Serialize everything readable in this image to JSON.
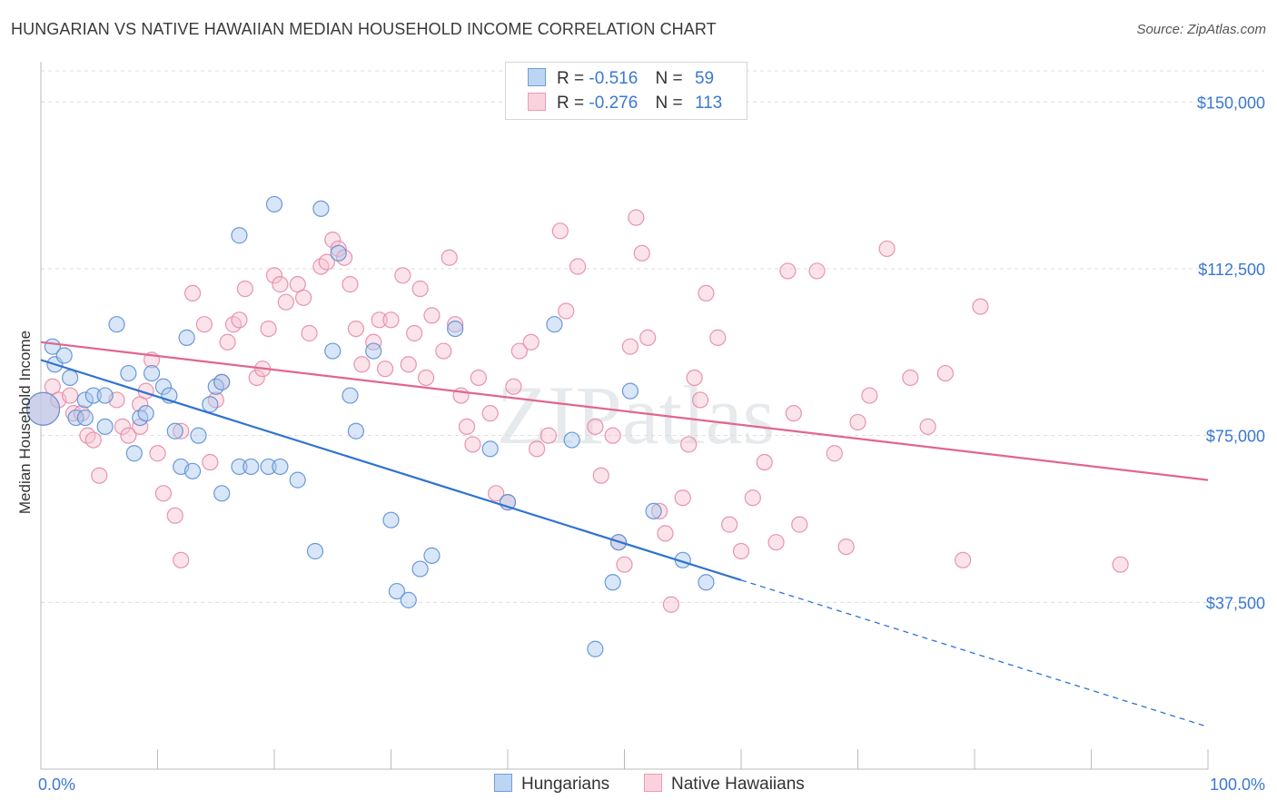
{
  "title": "HUNGARIAN VS NATIVE HAWAIIAN MEDIAN HOUSEHOLD INCOME CORRELATION CHART",
  "source": "Source: ZipAtlas.com",
  "watermark": "ZIPatlas",
  "legend": {
    "rows": [
      {
        "r_label": "R =",
        "r_value": "-0.516",
        "n_label": "N =",
        "n_value": "59"
      },
      {
        "r_label": "R =",
        "r_value": "-0.276",
        "n_label": "N =",
        "n_value": "113"
      }
    ]
  },
  "bottom_legend": {
    "hungarians": "Hungarians",
    "hawaiians": "Native Hawaiians"
  },
  "colors": {
    "blue_fill": "#aac8ee",
    "blue_stroke": "#5b8fd6",
    "blue_line": "#2f73d0",
    "pink_fill": "#f7c0d0",
    "pink_stroke": "#e58aa8",
    "pink_line": "#e0668e",
    "tick_text": "#3a78d4",
    "grid": "#dddddd"
  },
  "chart_data": {
    "type": "scatter",
    "title": "HUNGARIAN VS NATIVE HAWAIIAN MEDIAN HOUSEHOLD INCOME CORRELATION CHART",
    "xlabel": "",
    "ylabel": "Median Household Income",
    "xlim": [
      0,
      100
    ],
    "ylim": [
      0,
      157000
    ],
    "x_tick_labels": [
      "0.0%",
      "100.0%"
    ],
    "y_ticks": [
      37500,
      75000,
      112500,
      150000
    ],
    "y_tick_labels": [
      "$37,500",
      "$75,000",
      "$112,500",
      "$150,000"
    ],
    "series": [
      {
        "name": "Hungarians",
        "r": -0.516,
        "n": 59,
        "trend": {
          "x0": 0,
          "y0": 92000,
          "x1": 60,
          "y1": 42500,
          "dash_to_x": 100,
          "dash_to_y": 9500
        },
        "points": [
          [
            0.2,
            81000
          ],
          [
            1.0,
            95000
          ],
          [
            1.2,
            91000
          ],
          [
            2.0,
            93000
          ],
          [
            2.5,
            88000
          ],
          [
            3.0,
            79000
          ],
          [
            3.8,
            83000
          ],
          [
            4.5,
            84000
          ],
          [
            5.5,
            84000
          ],
          [
            3.8,
            79000
          ],
          [
            5.5,
            77000
          ],
          [
            6.5,
            100000
          ],
          [
            7.5,
            89000
          ],
          [
            8.5,
            79000
          ],
          [
            9.0,
            80000
          ],
          [
            9.5,
            89000
          ],
          [
            10.5,
            86000
          ],
          [
            11.0,
            84000
          ],
          [
            12.5,
            97000
          ],
          [
            13.5,
            75000
          ],
          [
            11.5,
            76000
          ],
          [
            12.0,
            68000
          ],
          [
            13.0,
            67000
          ],
          [
            14.5,
            82000
          ],
          [
            15.0,
            86000
          ],
          [
            15.5,
            62000
          ],
          [
            15.5,
            87000
          ],
          [
            17.0,
            68000
          ],
          [
            18.0,
            68000
          ],
          [
            19.5,
            68000
          ],
          [
            20.5,
            68000
          ],
          [
            22.0,
            65000
          ],
          [
            17.0,
            120000
          ],
          [
            20.0,
            127000
          ],
          [
            24.0,
            126000
          ],
          [
            23.5,
            49000
          ],
          [
            25.0,
            94000
          ],
          [
            25.5,
            116000
          ],
          [
            26.5,
            84000
          ],
          [
            28.5,
            94000
          ],
          [
            27.0,
            76000
          ],
          [
            30.0,
            56000
          ],
          [
            30.5,
            40000
          ],
          [
            31.5,
            38000
          ],
          [
            32.5,
            45000
          ],
          [
            33.5,
            48000
          ],
          [
            35.5,
            99000
          ],
          [
            38.5,
            72000
          ],
          [
            40.0,
            60000
          ],
          [
            44.0,
            100000
          ],
          [
            45.5,
            74000
          ],
          [
            47.5,
            27000
          ],
          [
            49.0,
            42000
          ],
          [
            49.5,
            51000
          ],
          [
            50.5,
            85000
          ],
          [
            52.5,
            58000
          ],
          [
            55.0,
            47000
          ],
          [
            57.0,
            42000
          ],
          [
            8.0,
            71000
          ]
        ]
      },
      {
        "name": "Native Hawaiians",
        "r": -0.276,
        "n": 113,
        "trend": {
          "x0": 0,
          "y0": 96000,
          "x1": 100,
          "y1": 65000
        },
        "points": [
          [
            0.2,
            81000
          ],
          [
            1.0,
            86000
          ],
          [
            1.5,
            83000
          ],
          [
            2.5,
            84000
          ],
          [
            2.8,
            80000
          ],
          [
            3.5,
            80000
          ],
          [
            4.0,
            75000
          ],
          [
            4.5,
            74000
          ],
          [
            5.0,
            66000
          ],
          [
            6.5,
            83000
          ],
          [
            7.0,
            77000
          ],
          [
            7.5,
            75000
          ],
          [
            8.5,
            82000
          ],
          [
            9.0,
            85000
          ],
          [
            8.5,
            77000
          ],
          [
            9.5,
            92000
          ],
          [
            10.0,
            71000
          ],
          [
            10.5,
            62000
          ],
          [
            11.5,
            57000
          ],
          [
            12.0,
            47000
          ],
          [
            12.0,
            76000
          ],
          [
            13.0,
            107000
          ],
          [
            14.0,
            100000
          ],
          [
            14.5,
            69000
          ],
          [
            15.0,
            83000
          ],
          [
            15.5,
            87000
          ],
          [
            16.0,
            96000
          ],
          [
            16.5,
            100000
          ],
          [
            17.0,
            101000
          ],
          [
            17.5,
            108000
          ],
          [
            18.5,
            88000
          ],
          [
            19.0,
            90000
          ],
          [
            19.5,
            99000
          ],
          [
            20.0,
            111000
          ],
          [
            20.5,
            109000
          ],
          [
            21.0,
            105000
          ],
          [
            22.0,
            109000
          ],
          [
            22.5,
            106000
          ],
          [
            23.0,
            98000
          ],
          [
            24.0,
            113000
          ],
          [
            24.5,
            114000
          ],
          [
            25.0,
            119000
          ],
          [
            25.5,
            117000
          ],
          [
            26.0,
            115000
          ],
          [
            26.5,
            109000
          ],
          [
            27.0,
            99000
          ],
          [
            27.5,
            91000
          ],
          [
            28.5,
            96000
          ],
          [
            29.0,
            101000
          ],
          [
            29.5,
            90000
          ],
          [
            30.0,
            101000
          ],
          [
            31.0,
            111000
          ],
          [
            31.5,
            91000
          ],
          [
            32.0,
            98000
          ],
          [
            32.5,
            108000
          ],
          [
            33.0,
            88000
          ],
          [
            33.5,
            102000
          ],
          [
            34.5,
            94000
          ],
          [
            35.0,
            115000
          ],
          [
            35.5,
            100000
          ],
          [
            36.0,
            84000
          ],
          [
            36.5,
            77000
          ],
          [
            37.0,
            73000
          ],
          [
            37.5,
            88000
          ],
          [
            38.5,
            80000
          ],
          [
            39.0,
            62000
          ],
          [
            40.0,
            60000
          ],
          [
            40.5,
            86000
          ],
          [
            41.0,
            94000
          ],
          [
            42.0,
            96000
          ],
          [
            42.5,
            72000
          ],
          [
            43.5,
            75000
          ],
          [
            44.5,
            121000
          ],
          [
            45.0,
            103000
          ],
          [
            46.0,
            113000
          ],
          [
            47.5,
            77000
          ],
          [
            48.0,
            66000
          ],
          [
            49.0,
            75000
          ],
          [
            49.5,
            51000
          ],
          [
            50.0,
            46000
          ],
          [
            50.5,
            95000
          ],
          [
            51.0,
            124000
          ],
          [
            51.5,
            116000
          ],
          [
            52.0,
            97000
          ],
          [
            53.0,
            58000
          ],
          [
            53.5,
            53000
          ],
          [
            54.0,
            37000
          ],
          [
            55.0,
            61000
          ],
          [
            55.5,
            73000
          ],
          [
            56.0,
            88000
          ],
          [
            56.5,
            83000
          ],
          [
            57.0,
            107000
          ],
          [
            58.0,
            97000
          ],
          [
            59.0,
            55000
          ],
          [
            60.0,
            49000
          ],
          [
            61.0,
            61000
          ],
          [
            62.0,
            69000
          ],
          [
            63.0,
            51000
          ],
          [
            64.0,
            112000
          ],
          [
            64.5,
            80000
          ],
          [
            65.0,
            55000
          ],
          [
            66.5,
            112000
          ],
          [
            68.0,
            71000
          ],
          [
            69.0,
            50000
          ],
          [
            70.0,
            78000
          ],
          [
            71.0,
            84000
          ],
          [
            72.5,
            117000
          ],
          [
            74.5,
            88000
          ],
          [
            76.0,
            77000
          ],
          [
            77.5,
            89000
          ],
          [
            79.0,
            47000
          ],
          [
            80.5,
            104000
          ],
          [
            92.5,
            46000
          ]
        ]
      }
    ]
  }
}
